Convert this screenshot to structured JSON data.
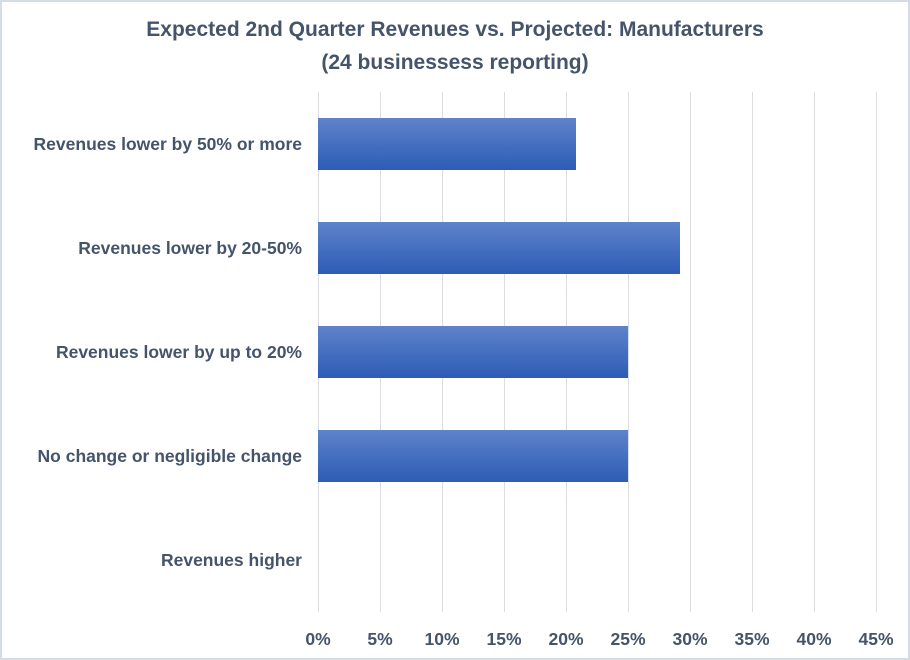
{
  "chart_data": {
    "type": "bar",
    "orientation": "horizontal",
    "title": "Expected 2nd Quarter Revenues vs. Projected: Manufacturers",
    "subtitle": "(24 businessess reporting)",
    "categories": [
      "Revenues lower by 50% or more",
      "Revenues lower by 20-50%",
      "Revenues lower by up to 20%",
      "No change or negligible change",
      "Revenues higher"
    ],
    "values": [
      20.8,
      29.2,
      25.0,
      25.0,
      0.0
    ],
    "value_unit": "%",
    "xlabel": "",
    "ylabel": "",
    "xlim": [
      0,
      45
    ],
    "x_tick_step": 5,
    "x_ticks": [
      "0%",
      "5%",
      "10%",
      "15%",
      "20%",
      "25%",
      "30%",
      "35%",
      "40%",
      "45%"
    ],
    "grid": true,
    "legend": false,
    "data_labels": false,
    "colors": {
      "bar_gradient_top": "#5d83ca",
      "bar_gradient_bottom": "#2e5cb6",
      "text": "#44546a",
      "gridline": "#dadde2",
      "chart_border": "#d5dce8",
      "background": "#ffffff"
    }
  }
}
